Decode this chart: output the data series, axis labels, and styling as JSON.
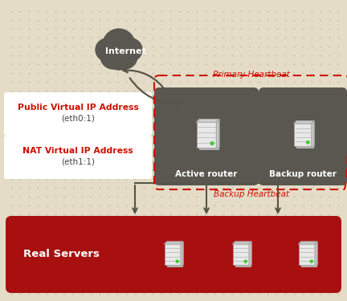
{
  "bg_color": "#e5dcc8",
  "bg_dots_color": "#cfc5ad",
  "cloud_color": "#5a5750",
  "cloud_text": "Internet",
  "router_box_color": "#5a5750",
  "active_router_label": "Active router",
  "backup_router_label": "Backup router",
  "heartbeat_color": "#cc1100",
  "primary_hb_label": "Primary Heartbeat",
  "backup_hb_label": "Backup Heartbeat",
  "ip_box_color": "#ffffff",
  "ip1_label_bold": "Public Virtual IP Address",
  "ip1_label_normal": "(eth0:1)",
  "ip2_label_bold": "NAT Virtual IP Address",
  "ip2_label_normal": "(eth1:1)",
  "ip_label_color": "#cc1100",
  "ip_sub_color": "#444444",
  "real_server_box_color": "#a81010",
  "real_server_label": "Real Servers",
  "real_server_text_color": "#ffffff",
  "arrow_color": "#555548",
  "figsize": [
    4.32,
    3.75
  ],
  "dpi": 100
}
